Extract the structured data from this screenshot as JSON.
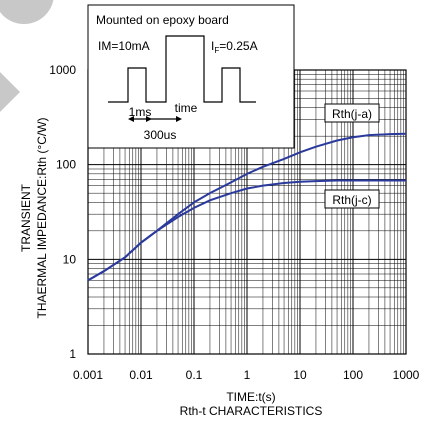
{
  "chart_data": {
    "type": "line",
    "subtitle": "Rth-t CHARACTERISTICS",
    "xlabel": "TIME:t(s)",
    "ylabel_line1": "TRANSIENT",
    "ylabel_line2": "THAERMAL IMPEDANCE:Rth (°C/W)",
    "x_scale": "log",
    "y_scale": "log",
    "xlim": [
      0.001,
      1000
    ],
    "ylim": [
      1,
      1000
    ],
    "x_ticks": [
      "0.001",
      "0.01",
      "0.1",
      "1",
      "10",
      "100",
      "1000"
    ],
    "y_ticks": [
      "1",
      "10",
      "100",
      "1000"
    ],
    "grid": true,
    "series": [
      {
        "name": "Rth(j-a)",
        "color": "#2a3a9c",
        "x": [
          0.001,
          0.002,
          0.005,
          0.01,
          0.02,
          0.05,
          0.1,
          0.2,
          0.5,
          1,
          2,
          5,
          10,
          20,
          50,
          100,
          200,
          500,
          1000
        ],
        "y": [
          6,
          7.5,
          10.5,
          15,
          20,
          30,
          40,
          50,
          65,
          80,
          95,
          115,
          135,
          155,
          180,
          195,
          205,
          210,
          212
        ]
      },
      {
        "name": "Rth(j-c)",
        "color": "#2a3a9c",
        "x": [
          0.001,
          0.002,
          0.005,
          0.01,
          0.02,
          0.05,
          0.1,
          0.2,
          0.5,
          1,
          2,
          5,
          10,
          20,
          50,
          100,
          200,
          500,
          1000
        ],
        "y": [
          6,
          7.5,
          10.5,
          15,
          20,
          28,
          35,
          42,
          50,
          56,
          60,
          64,
          66,
          67,
          68,
          68,
          68,
          68,
          68
        ]
      }
    ],
    "inset": {
      "title": "Mounted on epoxy board",
      "im_label": "IM=10mA",
      "if_label_prefix": "I",
      "if_label_sub": "F",
      "if_label_suffix": "=0.25A",
      "pulse_width_label": "1ms",
      "period_label": "time",
      "delay_label": "300us"
    }
  }
}
